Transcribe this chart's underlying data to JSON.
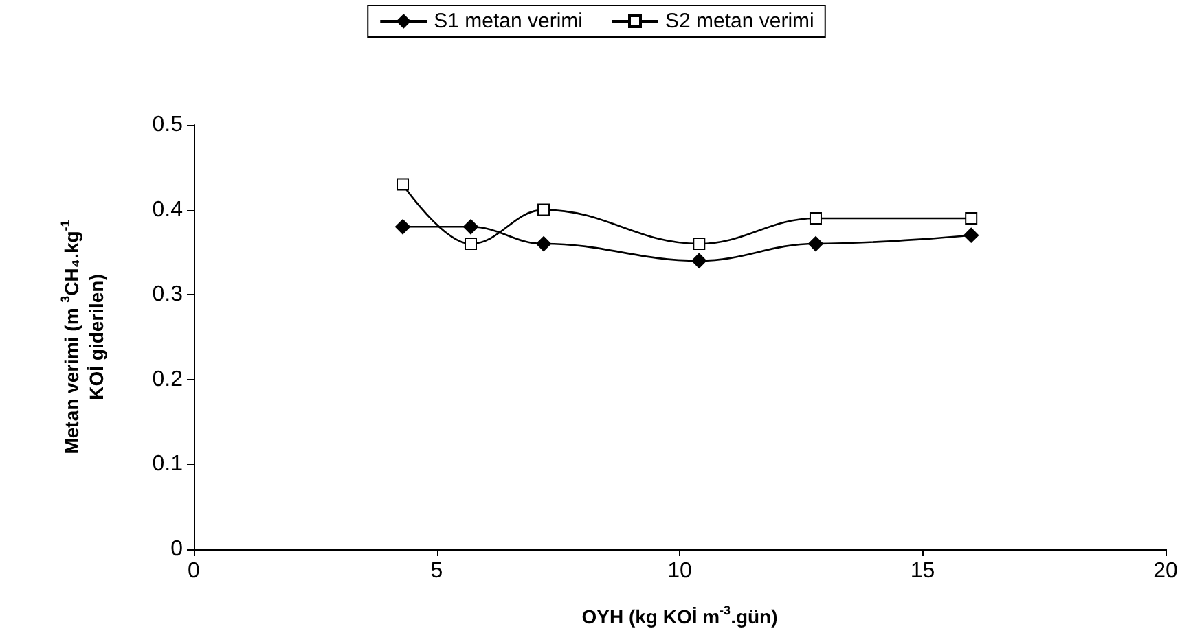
{
  "chart_data": {
    "type": "line",
    "xlabel": "OYH (kg KOİ m$^{-3}$.gün)",
    "ylabel": "Metan verimi (m $^{3}$CH₄.kg$^{-1}$ KOİ giderilen)",
    "xlim": [
      0,
      20
    ],
    "xticks": [
      0,
      5,
      10,
      15,
      20
    ],
    "ylim": [
      0,
      0.5
    ],
    "yticks": [
      0,
      0.1,
      0.2,
      0.3,
      0.4,
      0.5
    ],
    "grid": false,
    "legend": "top",
    "series": [
      {
        "name": "S1 metan verimi",
        "color": "#000000",
        "marker": "diamond",
        "x": [
          4.3,
          5.7,
          7.2,
          10.4,
          12.8,
          16
        ],
        "values": [
          0.38,
          0.38,
          0.36,
          0.34,
          0.36,
          0.37
        ]
      },
      {
        "name": "S2 metan verimi",
        "color": "#000000",
        "marker": "square",
        "x": [
          4.3,
          5.7,
          7.2,
          10.4,
          12.8,
          16
        ],
        "values": [
          0.43,
          0.36,
          0.4,
          0.36,
          0.39,
          0.39
        ]
      }
    ]
  }
}
